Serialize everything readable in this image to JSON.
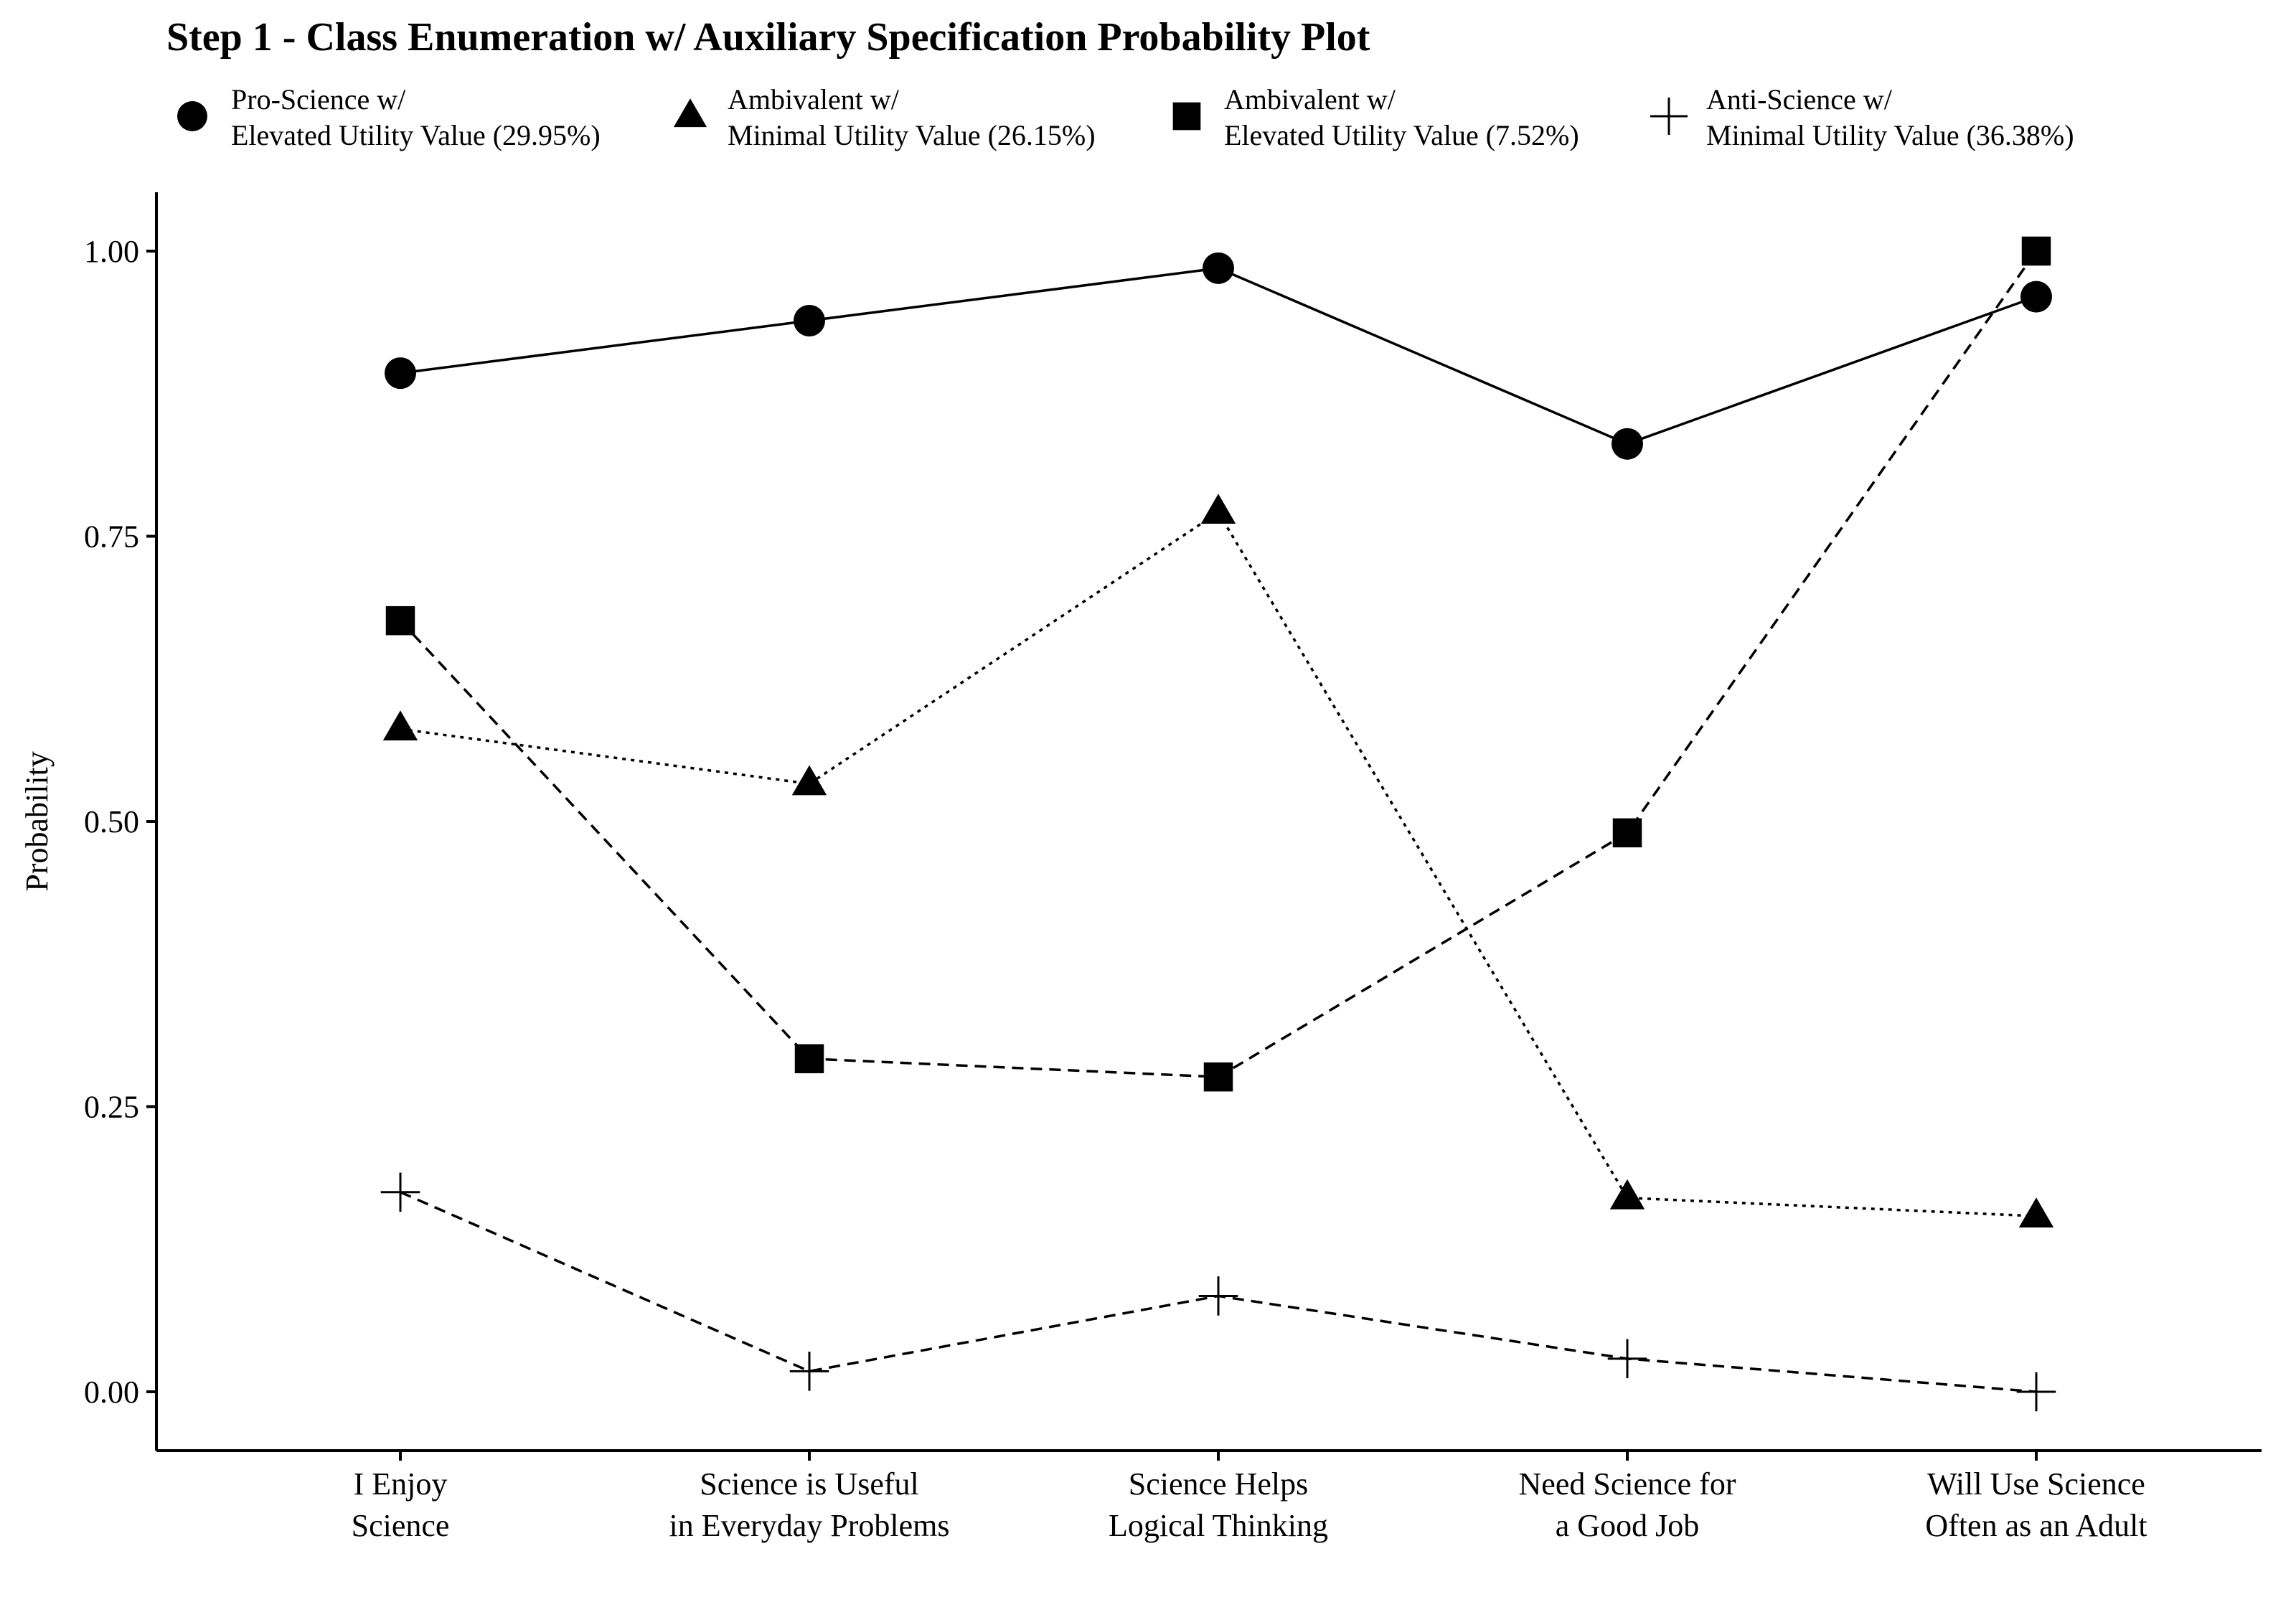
{
  "chart_data": {
    "type": "line",
    "title": "Step 1 - Class Enumeration w/ Auxiliary Specification Probability Plot",
    "xlabel": "",
    "ylabel": "Probability",
    "ylim": [
      0,
      1
    ],
    "yticks": [
      "0.00",
      "0.25",
      "0.50",
      "0.75",
      "1.00"
    ],
    "ytick_values": [
      0,
      0.25,
      0.5,
      0.75,
      1.0
    ],
    "grid": false,
    "legend_position": "top",
    "categories": [
      [
        "I Enjoy",
        "Science"
      ],
      [
        "Science is Useful",
        "in Everyday Problems"
      ],
      [
        "Science Helps",
        "Logical Thinking"
      ],
      [
        "Need Science for",
        "a Good Job"
      ],
      [
        "Will Use Science",
        "Often as an Adult"
      ]
    ],
    "series": [
      {
        "name": [
          "Pro-Science w/",
          "Elevated Utility Value (29.95%)"
        ],
        "marker": "circle",
        "line": "solid",
        "values": [
          0.893,
          0.939,
          0.985,
          0.831,
          0.96
        ]
      },
      {
        "name": [
          "Ambivalent w/",
          "Minimal Utility Value (26.15%)"
        ],
        "marker": "triangle",
        "line": "dotted",
        "values": [
          0.581,
          0.533,
          0.771,
          0.17,
          0.154
        ]
      },
      {
        "name": [
          "Ambivalent w/",
          "Elevated Utility Value (7.52%)"
        ],
        "marker": "square",
        "line": "dashed",
        "values": [
          0.676,
          0.292,
          0.276,
          0.49,
          1.0
        ]
      },
      {
        "name": [
          "Anti-Science w/",
          "Minimal Utility Value (36.38%)"
        ],
        "marker": "plus",
        "line": "dashed",
        "values": [
          0.175,
          0.018,
          0.084,
          0.029,
          0.0
        ]
      }
    ],
    "colors": {
      "ink": "#000000",
      "background": "#ffffff"
    }
  }
}
